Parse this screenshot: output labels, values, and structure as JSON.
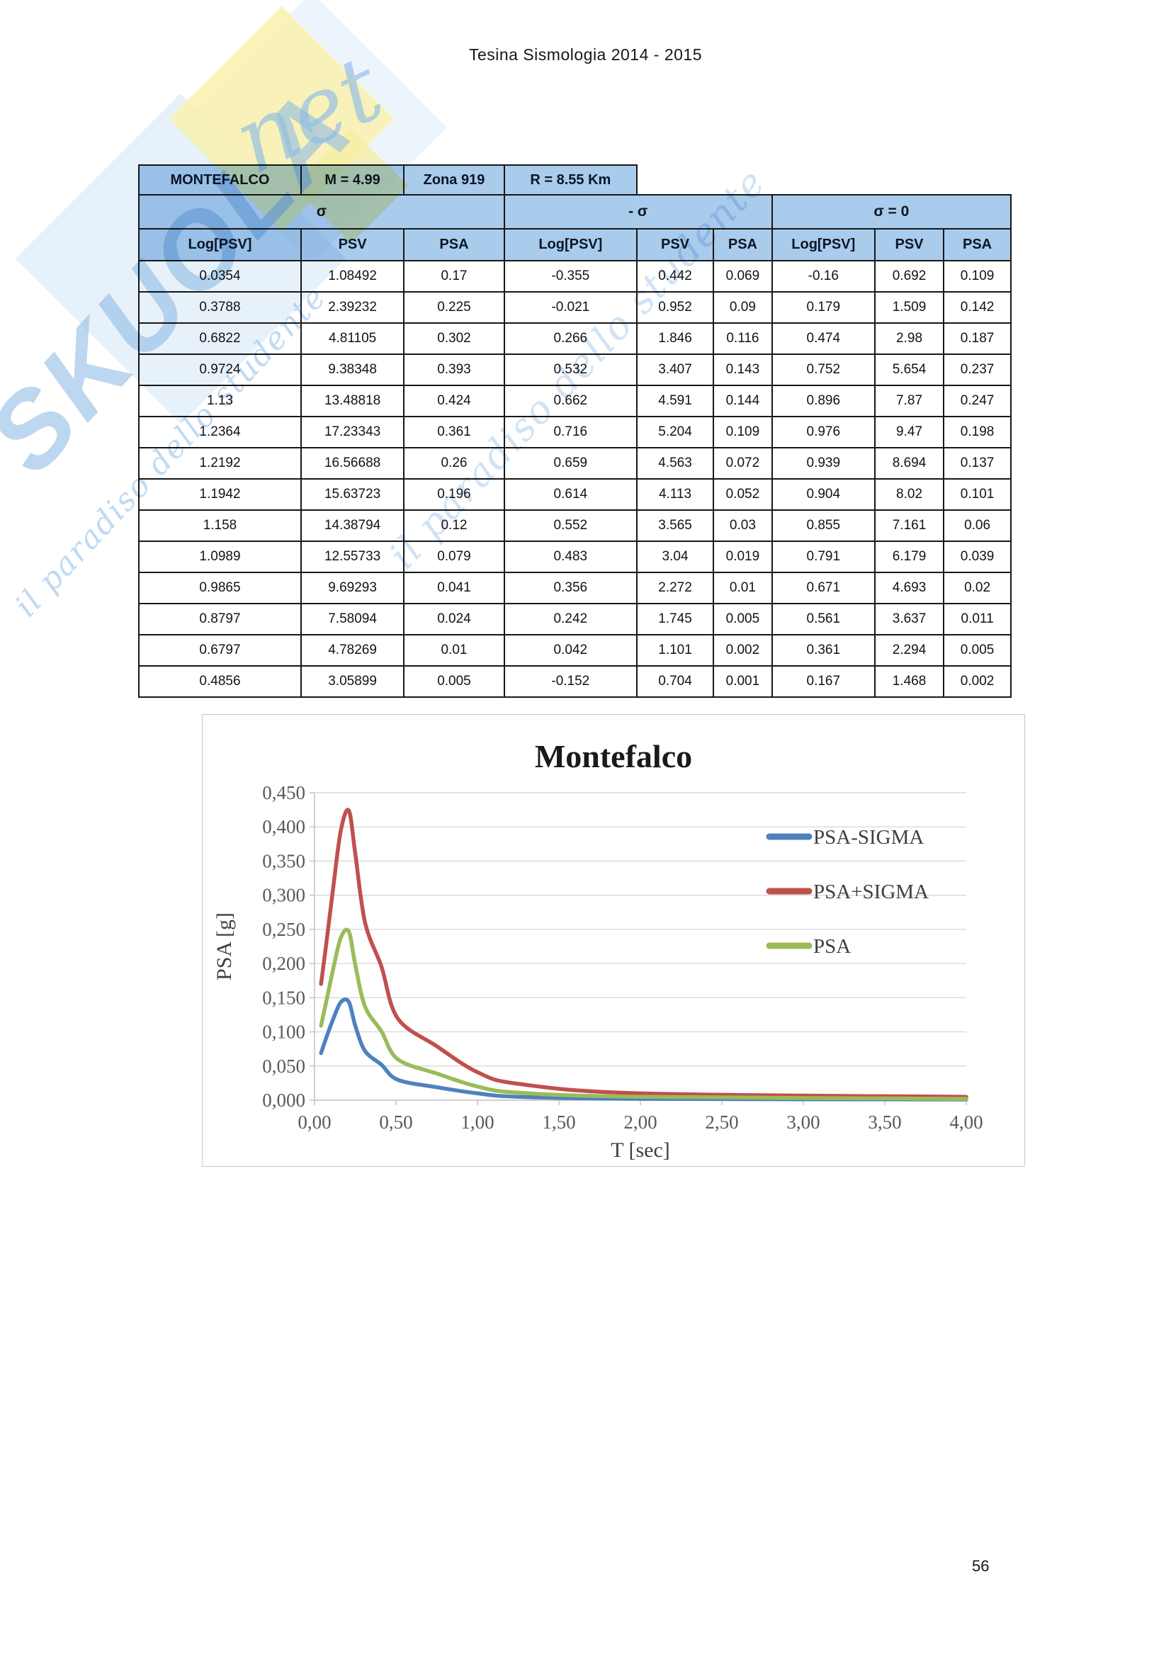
{
  "page": {
    "header_title": "Tesina Sismologia 2014 - 2015",
    "page_number": "56"
  },
  "watermark": {
    "brand": "SKUOLA",
    "suffix": "net",
    "tagline": "il paradiso dello studente"
  },
  "table": {
    "info_row": [
      "MONTEFALCO",
      "M = 4.99",
      "Zona 919",
      "R = 8.55 Km"
    ],
    "group_headers": [
      "σ",
      "- σ",
      "σ = 0"
    ],
    "col_headers": [
      "Log[PSV]",
      "PSV",
      "PSA",
      "Log[PSV]",
      "PSV",
      "PSA",
      "Log[PSV]",
      "PSV",
      "PSA"
    ],
    "rows": [
      [
        "0.0354",
        "1.08492",
        "0.17",
        "-0.355",
        "0.442",
        "0.069",
        "-0.16",
        "0.692",
        "0.109"
      ],
      [
        "0.3788",
        "2.39232",
        "0.225",
        "-0.021",
        "0.952",
        "0.09",
        "0.179",
        "1.509",
        "0.142"
      ],
      [
        "0.6822",
        "4.81105",
        "0.302",
        "0.266",
        "1.846",
        "0.116",
        "0.474",
        "2.98",
        "0.187"
      ],
      [
        "0.9724",
        "9.38348",
        "0.393",
        "0.532",
        "3.407",
        "0.143",
        "0.752",
        "5.654",
        "0.237"
      ],
      [
        "1.13",
        "13.48818",
        "0.424",
        "0.662",
        "4.591",
        "0.144",
        "0.896",
        "7.87",
        "0.247"
      ],
      [
        "1.2364",
        "17.23343",
        "0.361",
        "0.716",
        "5.204",
        "0.109",
        "0.976",
        "9.47",
        "0.198"
      ],
      [
        "1.2192",
        "16.56688",
        "0.26",
        "0.659",
        "4.563",
        "0.072",
        "0.939",
        "8.694",
        "0.137"
      ],
      [
        "1.1942",
        "15.63723",
        "0.196",
        "0.614",
        "4.113",
        "0.052",
        "0.904",
        "8.02",
        "0.101"
      ],
      [
        "1.158",
        "14.38794",
        "0.12",
        "0.552",
        "3.565",
        "0.03",
        "0.855",
        "7.161",
        "0.06"
      ],
      [
        "1.0989",
        "12.55733",
        "0.079",
        "0.483",
        "3.04",
        "0.019",
        "0.791",
        "6.179",
        "0.039"
      ],
      [
        "0.9865",
        "9.69293",
        "0.041",
        "0.356",
        "2.272",
        "0.01",
        "0.671",
        "4.693",
        "0.02"
      ],
      [
        "0.8797",
        "7.58094",
        "0.024",
        "0.242",
        "1.745",
        "0.005",
        "0.561",
        "3.637",
        "0.011"
      ],
      [
        "0.6797",
        "4.78269",
        "0.01",
        "0.042",
        "1.101",
        "0.002",
        "0.361",
        "2.294",
        "0.005"
      ],
      [
        "0.4856",
        "3.05899",
        "0.005",
        "-0.152",
        "0.704",
        "0.001",
        "0.167",
        "1.468",
        "0.002"
      ]
    ],
    "header_fill": "#A9CBEC",
    "border_color": "#171717"
  },
  "chart_data": {
    "type": "line",
    "title": "Montefalco",
    "xlabel": "T [sec]",
    "ylabel": "PSA [g]",
    "xlim": [
      0,
      4
    ],
    "ylim": [
      0,
      0.45
    ],
    "grid": true,
    "legend_position": "right-inside",
    "x_ticks": [
      "0,00",
      "0,50",
      "1,00",
      "1,50",
      "2,00",
      "2,50",
      "3,00",
      "3,50",
      "4,00"
    ],
    "y_ticks": [
      "0,000",
      "0,050",
      "0,100",
      "0,150",
      "0,200",
      "0,250",
      "0,300",
      "0,350",
      "0,400",
      "0,450"
    ],
    "x": [
      0.04,
      0.07,
      0.11,
      0.16,
      0.21,
      0.25,
      0.31,
      0.41,
      0.51,
      0.75,
      1.0,
      1.25,
      2.0,
      4.0
    ],
    "series": [
      {
        "name": "PSA-SIGMA",
        "color": "#4F81BD",
        "values": [
          0.069,
          0.09,
          0.116,
          0.143,
          0.144,
          0.109,
          0.072,
          0.052,
          0.03,
          0.019,
          0.01,
          0.005,
          0.002,
          0.001
        ]
      },
      {
        "name": "PSA+SIGMA",
        "color": "#C0504D",
        "values": [
          0.17,
          0.225,
          0.302,
          0.393,
          0.424,
          0.361,
          0.26,
          0.196,
          0.12,
          0.079,
          0.041,
          0.024,
          0.01,
          0.005
        ]
      },
      {
        "name": "PSA",
        "color": "#9BBB59",
        "values": [
          0.109,
          0.142,
          0.187,
          0.237,
          0.247,
          0.198,
          0.137,
          0.101,
          0.06,
          0.039,
          0.02,
          0.011,
          0.005,
          0.002
        ]
      }
    ]
  }
}
